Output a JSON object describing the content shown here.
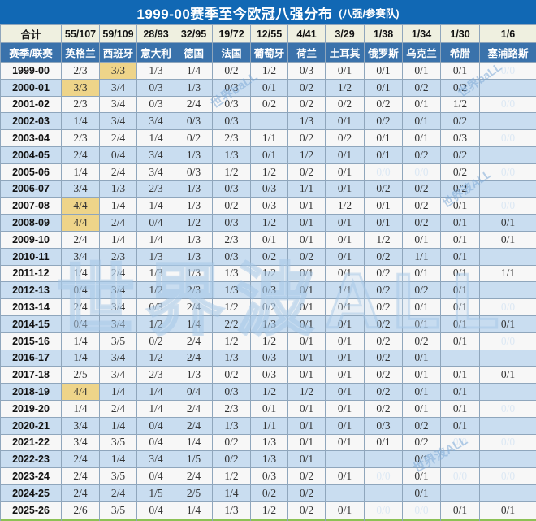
{
  "title": "1999-00赛季至今欧冠八强分布",
  "title_note": "(八强/参赛队)",
  "watermarks": [
    "世界baLL",
    "世界波ALL"
  ],
  "colors": {
    "title_bg": "#1168b4",
    "header_bg": "#3a72ab",
    "totals_bg": "#eff0e0",
    "row_light": "#f7f7f7",
    "row_blue": "#c9ddf0",
    "highlight": "#eed489",
    "footer_green": "#8dc155",
    "muted_text": "#dce8f4"
  },
  "chart_data": {
    "type": "table",
    "corner_label_top": "合计",
    "corner_label_header": "赛季/联赛",
    "corner_label_footer": "赛季/联赛",
    "columns": [
      {
        "name": "英格兰",
        "total": "55/107",
        "flag": "england"
      },
      {
        "name": "西班牙",
        "total": "59/109",
        "flag": "spain"
      },
      {
        "name": "意大利",
        "total": "28/93",
        "flag": "italy"
      },
      {
        "name": "德国",
        "total": "32/95",
        "flag": "germany"
      },
      {
        "name": "法国",
        "total": "19/72",
        "flag": "france"
      },
      {
        "name": "葡萄牙",
        "total": "12/55",
        "flag": "portugal"
      },
      {
        "name": "荷兰",
        "total": "4/41",
        "flag": "netherlands"
      },
      {
        "name": "土耳其",
        "total": "3/29",
        "flag": "turkey"
      },
      {
        "name": "俄罗斯",
        "total": "1/38",
        "flag": "russia"
      },
      {
        "name": "乌克兰",
        "total": "1/34",
        "flag": "ukraine"
      },
      {
        "name": "希腊",
        "total": "1/30",
        "flag": "greece"
      },
      {
        "name": "塞浦路斯",
        "total": "1/6",
        "flag": "cyprus"
      }
    ],
    "rows": [
      {
        "season": "1999-00",
        "values": [
          "2/3",
          "3/3",
          "1/3",
          "1/4",
          "0/2",
          "1/2",
          "0/3",
          "0/1",
          "0/1",
          "0/1",
          "0/1",
          "0/0"
        ],
        "highlight": [
          1
        ],
        "muted": [
          11
        ]
      },
      {
        "season": "2000-01",
        "values": [
          "3/3",
          "3/4",
          "0/3",
          "1/3",
          "0/3",
          "0/1",
          "0/2",
          "1/2",
          "0/1",
          "0/2",
          "0/2",
          ""
        ],
        "highlight": [
          0
        ],
        "muted": []
      },
      {
        "season": "2001-02",
        "values": [
          "2/3",
          "3/4",
          "0/3",
          "2/4",
          "0/3",
          "0/2",
          "0/2",
          "0/2",
          "0/2",
          "0/1",
          "1/2",
          "0/0"
        ],
        "highlight": [],
        "muted": [
          11
        ]
      },
      {
        "season": "2002-03",
        "values": [
          "1/4",
          "3/4",
          "3/4",
          "0/3",
          "0/3",
          "",
          "1/3",
          "0/1",
          "0/2",
          "0/1",
          "0/2",
          ""
        ],
        "highlight": [],
        "muted": []
      },
      {
        "season": "2003-04",
        "values": [
          "2/3",
          "2/4",
          "1/4",
          "0/2",
          "2/3",
          "1/1",
          "0/2",
          "0/2",
          "0/1",
          "0/1",
          "0/3",
          "0/0"
        ],
        "highlight": [],
        "muted": [
          11
        ]
      },
      {
        "season": "2004-05",
        "values": [
          "2/4",
          "0/4",
          "3/4",
          "1/3",
          "1/3",
          "0/1",
          "1/2",
          "0/1",
          "0/1",
          "0/2",
          "0/2",
          ""
        ],
        "highlight": [],
        "muted": []
      },
      {
        "season": "2005-06",
        "values": [
          "1/4",
          "2/4",
          "3/4",
          "0/3",
          "1/2",
          "1/2",
          "0/2",
          "0/1",
          "0/0",
          "0/0",
          "0/2",
          "0/0"
        ],
        "highlight": [],
        "muted": [
          8,
          9,
          11
        ]
      },
      {
        "season": "2006-07",
        "values": [
          "3/4",
          "1/3",
          "2/3",
          "1/3",
          "0/3",
          "0/3",
          "1/1",
          "0/1",
          "0/2",
          "0/2",
          "0/2",
          ""
        ],
        "highlight": [],
        "muted": []
      },
      {
        "season": "2007-08",
        "values": [
          "4/4",
          "1/4",
          "1/4",
          "1/3",
          "0/2",
          "0/3",
          "0/1",
          "1/2",
          "0/1",
          "0/2",
          "0/1",
          "0/0"
        ],
        "highlight": [
          0
        ],
        "muted": [
          11
        ]
      },
      {
        "season": "2008-09",
        "values": [
          "4/4",
          "2/4",
          "0/4",
          "1/2",
          "0/3",
          "1/2",
          "0/1",
          "0/1",
          "0/1",
          "0/2",
          "0/1",
          "0/1"
        ],
        "highlight": [
          0
        ],
        "muted": []
      },
      {
        "season": "2009-10",
        "values": [
          "2/4",
          "1/4",
          "1/4",
          "1/3",
          "2/3",
          "0/1",
          "0/1",
          "0/1",
          "1/2",
          "0/1",
          "0/1",
          "0/1"
        ],
        "highlight": [],
        "muted": []
      },
      {
        "season": "2010-11",
        "values": [
          "3/4",
          "2/3",
          "1/3",
          "1/3",
          "0/3",
          "0/2",
          "0/2",
          "0/1",
          "0/2",
          "1/1",
          "0/1",
          ""
        ],
        "highlight": [],
        "muted": []
      },
      {
        "season": "2011-12",
        "values": [
          "1/4",
          "2/4",
          "1/3",
          "1/3",
          "1/3",
          "1/2",
          "0/1",
          "0/1",
          "0/2",
          "0/1",
          "0/1",
          "1/1"
        ],
        "highlight": [],
        "muted": []
      },
      {
        "season": "2012-13",
        "values": [
          "0/4",
          "3/4",
          "1/2",
          "2/3",
          "1/3",
          "0/3",
          "0/1",
          "1/1",
          "0/2",
          "0/2",
          "0/1",
          ""
        ],
        "highlight": [],
        "muted": []
      },
      {
        "season": "2013-14",
        "values": [
          "2/4",
          "3/4",
          "0/3",
          "2/4",
          "1/2",
          "0/2",
          "0/1",
          "0/1",
          "0/2",
          "0/1",
          "0/1",
          "0/0"
        ],
        "highlight": [],
        "muted": [
          11
        ]
      },
      {
        "season": "2014-15",
        "values": [
          "0/4",
          "3/4",
          "1/2",
          "1/4",
          "2/2",
          "1/3",
          "0/1",
          "0/1",
          "0/2",
          "0/1",
          "0/1",
          "0/1"
        ],
        "highlight": [],
        "muted": []
      },
      {
        "season": "2015-16",
        "values": [
          "1/4",
          "3/5",
          "0/2",
          "2/4",
          "1/2",
          "1/2",
          "0/1",
          "0/1",
          "0/2",
          "0/2",
          "0/1",
          "0/0"
        ],
        "highlight": [],
        "muted": [
          11
        ]
      },
      {
        "season": "2016-17",
        "values": [
          "1/4",
          "3/4",
          "1/2",
          "2/4",
          "1/3",
          "0/3",
          "0/1",
          "0/1",
          "0/2",
          "0/1",
          "",
          ""
        ],
        "highlight": [],
        "muted": []
      },
      {
        "season": "2017-18",
        "values": [
          "2/5",
          "3/4",
          "2/3",
          "1/3",
          "0/2",
          "0/3",
          "0/1",
          "0/1",
          "0/2",
          "0/1",
          "0/1",
          "0/1"
        ],
        "highlight": [],
        "muted": []
      },
      {
        "season": "2018-19",
        "values": [
          "4/4",
          "1/4",
          "1/4",
          "0/4",
          "0/3",
          "1/2",
          "1/2",
          "0/1",
          "0/2",
          "0/1",
          "0/1",
          ""
        ],
        "highlight": [
          0
        ],
        "muted": []
      },
      {
        "season": "2019-20",
        "values": [
          "1/4",
          "2/4",
          "1/4",
          "2/4",
          "2/3",
          "0/1",
          "0/1",
          "0/1",
          "0/2",
          "0/1",
          "0/1",
          "0/0"
        ],
        "highlight": [],
        "muted": [
          11
        ]
      },
      {
        "season": "2020-21",
        "values": [
          "3/4",
          "1/4",
          "0/4",
          "2/4",
          "1/3",
          "1/1",
          "0/1",
          "0/1",
          "0/3",
          "0/2",
          "0/1",
          ""
        ],
        "highlight": [],
        "muted": []
      },
      {
        "season": "2021-22",
        "values": [
          "3/4",
          "3/5",
          "0/4",
          "1/4",
          "0/2",
          "1/3",
          "0/1",
          "0/1",
          "0/1",
          "0/2",
          "0/0",
          "0/0"
        ],
        "highlight": [],
        "muted": [
          10,
          11
        ]
      },
      {
        "season": "2022-23",
        "values": [
          "2/4",
          "1/4",
          "3/4",
          "1/5",
          "0/2",
          "1/3",
          "0/1",
          "",
          "",
          "0/1",
          "",
          ""
        ],
        "highlight": [],
        "muted": []
      },
      {
        "season": "2023-24",
        "values": [
          "2/4",
          "3/5",
          "0/4",
          "2/4",
          "1/2",
          "0/3",
          "0/2",
          "0/1",
          "0/0",
          "0/1",
          "0/0",
          "0/0"
        ],
        "highlight": [],
        "muted": [
          8,
          10,
          11
        ]
      },
      {
        "season": "2024-25",
        "values": [
          "2/4",
          "2/4",
          "1/5",
          "2/5",
          "1/4",
          "0/2",
          "0/2",
          "",
          "",
          "0/1",
          "",
          ""
        ],
        "highlight": [],
        "muted": []
      },
      {
        "season": "2025-26",
        "values": [
          "2/6",
          "3/5",
          "0/4",
          "1/4",
          "1/3",
          "1/2",
          "0/2",
          "0/1",
          "0/0",
          "0/0",
          "0/1",
          "0/1"
        ],
        "highlight": [],
        "muted": [
          8,
          9
        ]
      }
    ]
  }
}
